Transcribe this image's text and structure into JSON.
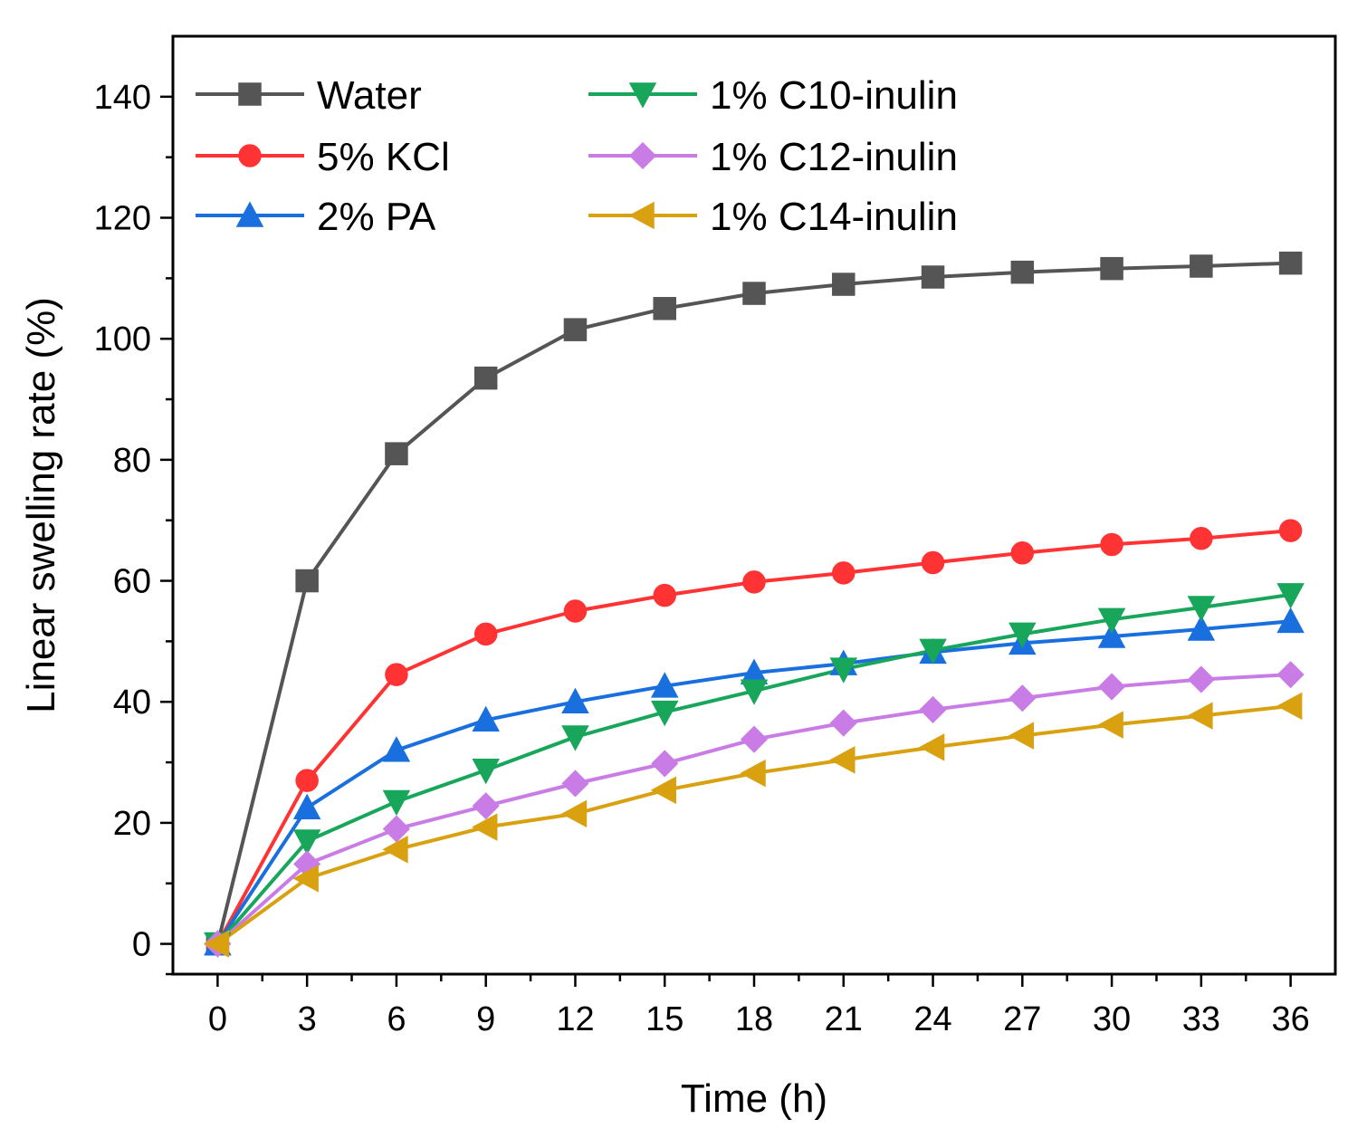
{
  "chart_data": {
    "type": "line",
    "title": "",
    "xlabel": "Time (h)",
    "ylabel": "Linear swelling rate (%)",
    "xlim": [
      -1.5,
      37.5
    ],
    "ylim": [
      -5,
      150
    ],
    "xticks": [
      0,
      3,
      6,
      9,
      12,
      15,
      18,
      21,
      24,
      27,
      30,
      33,
      36
    ],
    "yticks": [
      0,
      20,
      40,
      60,
      80,
      100,
      120,
      140
    ],
    "legend_position": "top-left",
    "x": [
      0,
      3,
      6,
      9,
      12,
      15,
      18,
      21,
      24,
      27,
      30,
      33,
      36
    ],
    "series": [
      {
        "name": "Water",
        "color": "#555555",
        "marker": "square",
        "values": [
          0,
          60,
          81,
          93.5,
          101.5,
          105,
          107.5,
          109,
          110.2,
          111,
          111.6,
          112,
          112.5
        ]
      },
      {
        "name": "5% KCl",
        "color": "#ff3333",
        "marker": "circle",
        "values": [
          0,
          27,
          44.5,
          51.2,
          55,
          57.6,
          59.8,
          61.3,
          63,
          64.6,
          66,
          67,
          68.3
        ]
      },
      {
        "name": "2% PA",
        "color": "#1a6fdf",
        "marker": "triangle-up",
        "values": [
          0,
          22.5,
          32,
          37,
          40,
          42.6,
          44.8,
          46.3,
          48.2,
          49.7,
          50.8,
          52,
          53.3
        ]
      },
      {
        "name": "1% C10-inulin",
        "color": "#17a65a",
        "marker": "triangle-down",
        "values": [
          0,
          17,
          23.5,
          28.7,
          34.2,
          38.3,
          41.8,
          45.4,
          48.5,
          51.2,
          53.6,
          55.6,
          57.7
        ]
      },
      {
        "name": "1% C12-inulin",
        "color": "#c97ce6",
        "marker": "diamond",
        "values": [
          0,
          13.2,
          19,
          22.8,
          26.5,
          29.8,
          33.8,
          36.5,
          38.7,
          40.6,
          42.5,
          43.7,
          44.5
        ]
      },
      {
        "name": "1% C14-inulin",
        "color": "#d9a010",
        "marker": "triangle-left",
        "values": [
          0,
          10.8,
          15.6,
          19.3,
          21.5,
          25.4,
          28.2,
          30.4,
          32.5,
          34.4,
          36.2,
          37.7,
          39.3
        ]
      }
    ]
  }
}
